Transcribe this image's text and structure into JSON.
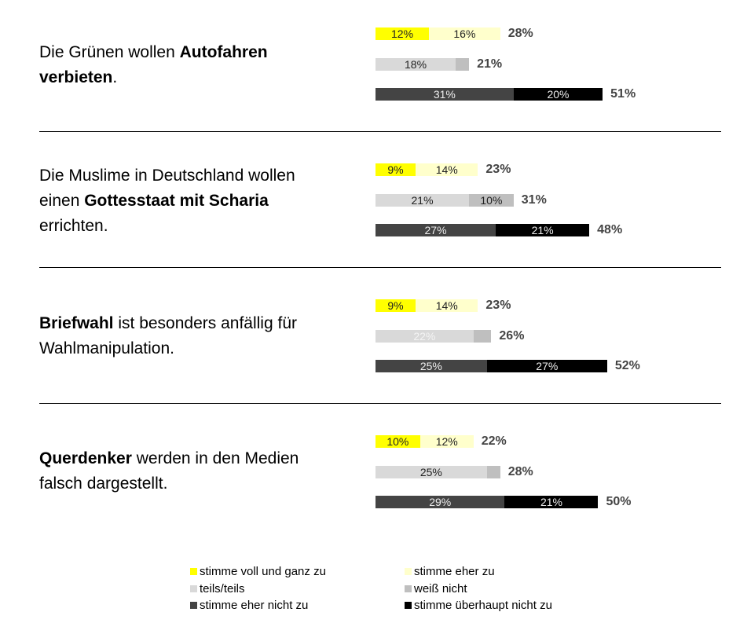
{
  "colors": {
    "voll": "#ffff00",
    "eher": "#ffffcc",
    "teils": "#d9d9d9",
    "weiss": "#bfbfbf",
    "eher_nicht": "#444444",
    "ueberhaupt_nicht": "#000000"
  },
  "chart_data": {
    "type": "bar",
    "orientation": "horizontal-stacked",
    "unit": "%",
    "legend_position": "bottom",
    "legend": [
      {
        "key": "voll",
        "label": "stimme voll und ganz zu"
      },
      {
        "key": "eher",
        "label": "stimme eher zu"
      },
      {
        "key": "teils",
        "label": "teils/teils"
      },
      {
        "key": "weiss",
        "label": "weiß nicht"
      },
      {
        "key": "eher_nicht",
        "label": "stimme eher nicht zu"
      },
      {
        "key": "ueberhaupt_nicht",
        "label": "stimme überhaupt nicht zu"
      }
    ],
    "items": [
      {
        "statement": [
          {
            "t": "Die Grünen wollen "
          },
          {
            "t": "Autofahren verbieten",
            "b": true
          },
          {
            "t": "."
          }
        ],
        "rows": [
          {
            "segments": [
              {
                "key": "voll",
                "value": 12,
                "label": "12%"
              },
              {
                "key": "eher",
                "value": 16,
                "label": "16%"
              }
            ],
            "total": "28%"
          },
          {
            "segments": [
              {
                "key": "teils",
                "value": 18,
                "label": "18%"
              },
              {
                "key": "weiss",
                "value": 3,
                "label": ""
              }
            ],
            "total": "21%"
          },
          {
            "segments": [
              {
                "key": "eher_nicht",
                "value": 31,
                "label": "31%"
              },
              {
                "key": "ueberhaupt_nicht",
                "value": 20,
                "label": "20%"
              }
            ],
            "total": "51%"
          }
        ]
      },
      {
        "statement": [
          {
            "t": "Die Muslime in Deutschland wollen einen "
          },
          {
            "t": "Gottesstaat mit Scharia",
            "b": true
          },
          {
            "t": " errichten."
          }
        ],
        "rows": [
          {
            "segments": [
              {
                "key": "voll",
                "value": 9,
                "label": "9%"
              },
              {
                "key": "eher",
                "value": 14,
                "label": "14%"
              }
            ],
            "total": "23%"
          },
          {
            "segments": [
              {
                "key": "teils",
                "value": 21,
                "label": "21%"
              },
              {
                "key": "weiss",
                "value": 10,
                "label": "10%"
              }
            ],
            "total": "31%"
          },
          {
            "segments": [
              {
                "key": "eher_nicht",
                "value": 27,
                "label": "27%"
              },
              {
                "key": "ueberhaupt_nicht",
                "value": 21,
                "label": "21%"
              }
            ],
            "total": "48%"
          }
        ]
      },
      {
        "statement": [
          {
            "t": "Briefwahl",
            "b": true
          },
          {
            "t": " ist besonders anfällig für Wahlmanipulation."
          }
        ],
        "rows": [
          {
            "segments": [
              {
                "key": "voll",
                "value": 9,
                "label": "9%"
              },
              {
                "key": "eher",
                "value": 14,
                "label": "14%"
              }
            ],
            "total": "23%"
          },
          {
            "segments": [
              {
                "key": "teils",
                "value": 22,
                "label": "22%"
              },
              {
                "key": "weiss",
                "value": 4,
                "label": ""
              }
            ],
            "total": "26%"
          },
          {
            "segments": [
              {
                "key": "eher_nicht",
                "value": 25,
                "label": "25%"
              },
              {
                "key": "ueberhaupt_nicht",
                "value": 27,
                "label": "27%"
              }
            ],
            "total": "52%"
          }
        ]
      },
      {
        "statement": [
          {
            "t": "Querdenker",
            "b": true
          },
          {
            "t": " werden in den Medien falsch dargestellt."
          }
        ],
        "rows": [
          {
            "segments": [
              {
                "key": "voll",
                "value": 10,
                "label": "10%"
              },
              {
                "key": "eher",
                "value": 12,
                "label": "12%"
              }
            ],
            "total": "22%"
          },
          {
            "segments": [
              {
                "key": "teils",
                "value": 25,
                "label": "25%"
              },
              {
                "key": "weiss",
                "value": 3,
                "label": ""
              }
            ],
            "total": "28%"
          },
          {
            "segments": [
              {
                "key": "eher_nicht",
                "value": 29,
                "label": "29%"
              },
              {
                "key": "ueberhaupt_nicht",
                "value": 21,
                "label": "21%"
              }
            ],
            "total": "50%"
          }
        ]
      }
    ]
  }
}
